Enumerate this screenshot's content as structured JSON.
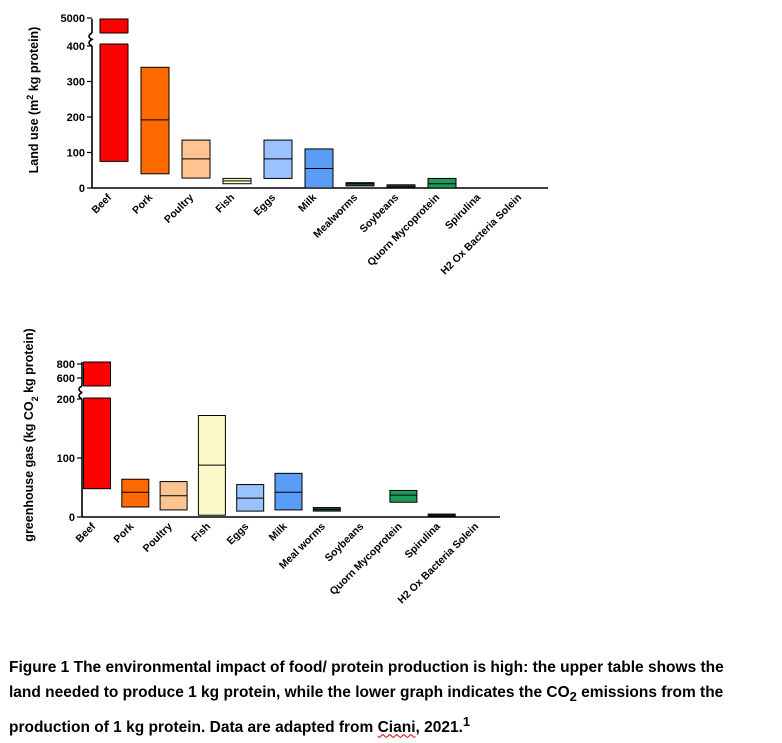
{
  "colors": {
    "Beef": "#ff0000",
    "Pork": "#ff6a00",
    "Poultry": "#ffc48f",
    "Fish": "#fafac8",
    "Eggs": "#99c2ff",
    "Milk": "#5b9cf6",
    "Mealworms": "#1d5e3a",
    "Soybeans": "#ffffff",
    "Quorn Mycoprotein": "#1e9a5a",
    "Spirulina": "#1b6b3d",
    "H2 Ox Bacteria Solein": "#ffffff"
  },
  "chart_data": [
    {
      "type": "bar",
      "subtype": "floating-range-with-median",
      "ylabel_prefix": "Land use (m",
      "ylabel_sup": "2",
      "ylabel_suffix": " kg protein)",
      "ylim": [
        0,
        400
      ],
      "axis_break": true,
      "upper_segment_ticks": [
        5000
      ],
      "yticks": [
        0,
        100,
        200,
        300,
        400
      ],
      "ytick_labels": [
        "0",
        "100",
        "200",
        "300",
        "400"
      ],
      "upper_tick_labels": [
        "5000"
      ],
      "categories": [
        "Beef",
        "Pork",
        "Poultry",
        "Fish",
        "Eggs",
        "Milk",
        "Mealworms",
        "Soybeans",
        "Quorn Mycoprotein",
        "Spirulina",
        "H2 Ox Bacteria Solein"
      ],
      "category_labels": [
        "Beef",
        "Pork",
        "Poultry",
        "Fish",
        "Eggs",
        "Milk",
        "Mealworms",
        "Soybeans",
        "Quorn Mycoprotein",
        "Spirulina",
        "H2 Ox Bacteria Solein"
      ],
      "min": [
        75,
        40,
        28,
        12,
        27,
        0,
        6,
        3,
        0,
        null,
        null
      ],
      "median": [
        null,
        192,
        82,
        20,
        82,
        55,
        12,
        6,
        12,
        null,
        null
      ],
      "max": [
        5000,
        340,
        135,
        27,
        135,
        110,
        15,
        9,
        27,
        null,
        null
      ]
    },
    {
      "type": "bar",
      "subtype": "floating-range-with-median",
      "ylabel_prefix": "greenhouse gas (kg CO",
      "ylabel_sub": "2",
      "ylabel_suffix": " kg protein)",
      "ylim": [
        0,
        200
      ],
      "axis_break": true,
      "upper_segment_ticks": [
        600,
        800
      ],
      "yticks": [
        0,
        100,
        200
      ],
      "ytick_labels": [
        "0",
        "100",
        "200"
      ],
      "upper_tick_labels": [
        "600",
        "800"
      ],
      "categories": [
        "Beef",
        "Pork",
        "Poultry",
        "Fish",
        "Eggs",
        "Milk",
        "Mealworms",
        "Soybeans",
        "Quorn Mycoprotein",
        "Spirulina",
        "H2 Ox Bacteria Solein"
      ],
      "category_labels": [
        "Beef",
        "Pork",
        "Poultry",
        "Fish",
        "Eggs",
        "Milk",
        "Meal worms",
        "Soybeans",
        "Quorn Mycoprotein",
        "Spirulina",
        "H2 Ox Bacteria Solein"
      ],
      "min": [
        48,
        17,
        12,
        3,
        10,
        12,
        10,
        null,
        25,
        1,
        null
      ],
      "median": [
        null,
        42,
        36,
        88,
        32,
        42,
        13,
        null,
        37,
        3,
        null
      ],
      "max": [
        850,
        64,
        60,
        172,
        55,
        74,
        16,
        null,
        45,
        5,
        null
      ]
    }
  ],
  "caption": {
    "main": "Figure 1 The environmental impact of food/ protein production is high: the upper table shows the land needed to produce 1 kg protein, while the lower graph indicates the CO",
    "co2_sub": "2",
    "mid": " emissions from the production of 1 kg protein. Data are adapted from ",
    "citation": "Ciani",
    "after_citation": ", 2021.",
    "footnote": "1"
  }
}
